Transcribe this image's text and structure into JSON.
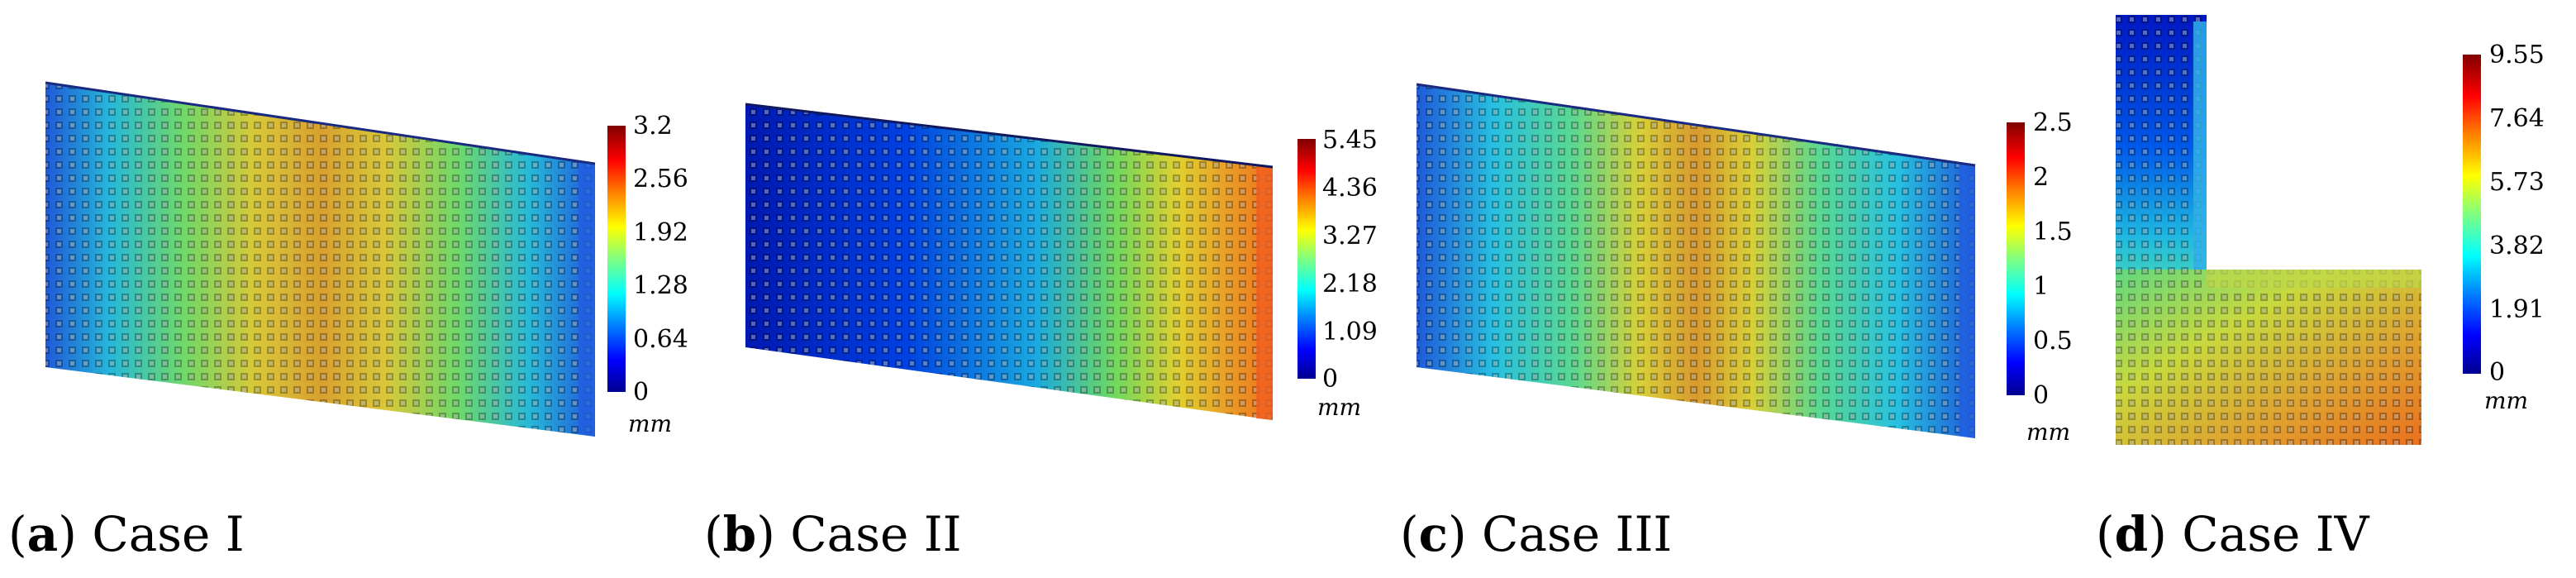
{
  "colormap": [
    "#00008f",
    "#0000ff",
    "#0080ff",
    "#00ffff",
    "#80ff80",
    "#ffff00",
    "#ff8000",
    "#ff0000",
    "#800000"
  ],
  "unit": "mm",
  "panels": [
    {
      "letter": "a",
      "title": "Case I",
      "caption_open": "(",
      "caption_close": ")",
      "ticks": [
        "3.2",
        "2.56",
        "1.92",
        "1.28",
        "0.64",
        "0"
      ]
    },
    {
      "letter": "b",
      "title": "Case II",
      "caption_open": "(",
      "caption_close": ")",
      "ticks": [
        "5.45",
        "4.36",
        "3.27",
        "2.18",
        "1.09",
        "0"
      ]
    },
    {
      "letter": "c",
      "title": "Case III",
      "caption_open": "(",
      "caption_close": ")",
      "ticks": [
        "2.5",
        "2",
        "1.5",
        "1",
        "0.5",
        "0"
      ]
    },
    {
      "letter": "d",
      "title": "Case IV",
      "caption_open": "(",
      "caption_close": ")",
      "ticks": [
        "9.55",
        "7.64",
        "5.73",
        "3.82",
        "1.91",
        "0"
      ]
    }
  ]
}
